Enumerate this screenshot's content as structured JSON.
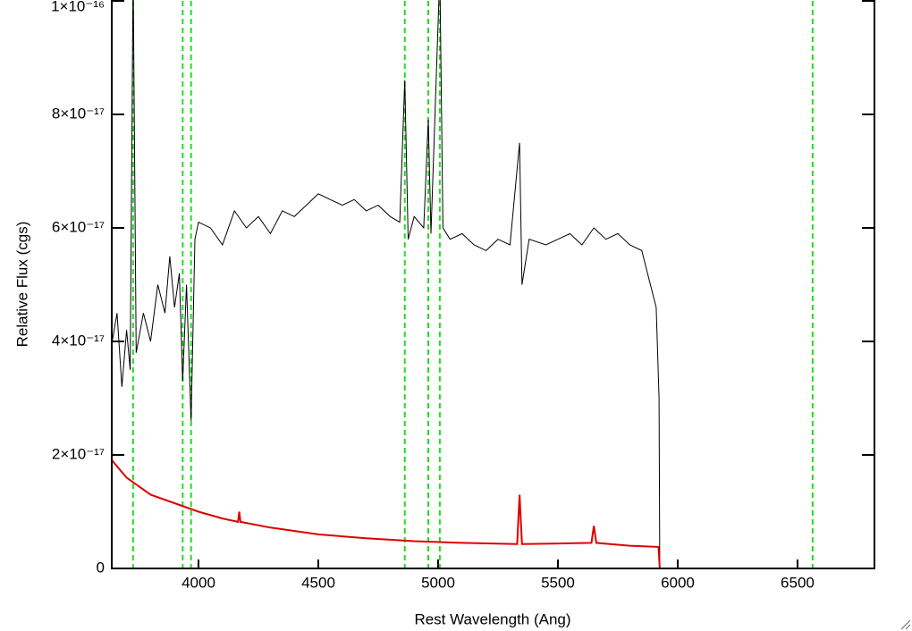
{
  "chart_data": {
    "type": "line",
    "xlabel": "Rest Wavelength (Ang)",
    "ylabel": "Relative Flux (cgs)",
    "xlim": [
      3638,
      6821
    ],
    "ylim": [
      0,
      1e-16
    ],
    "xticks": [
      4000,
      4500,
      5000,
      5500,
      6000,
      6500
    ],
    "yticks": [
      0,
      {
        "value": 2e-17,
        "label": "2×10⁻¹⁷"
      },
      {
        "value": 4e-17,
        "label": "4×10⁻¹⁷"
      },
      {
        "value": 6e-17,
        "label": "6×10⁻¹⁷"
      },
      {
        "value": 8e-17,
        "label": "8×10⁻¹⁷"
      },
      {
        "value": 1e-16,
        "label": "1×10⁻¹⁶"
      }
    ],
    "vlines": [
      3727,
      3934,
      3969,
      4861,
      4959,
      5007,
      6563
    ],
    "vline_color": "#22dd22",
    "series": [
      {
        "color": "#000000",
        "x": [
          3640,
          3660,
          3680,
          3700,
          3715,
          3727,
          3740,
          3770,
          3800,
          3830,
          3860,
          3880,
          3900,
          3920,
          3934,
          3950,
          3969,
          3985,
          4000,
          4050,
          4100,
          4150,
          4200,
          4250,
          4300,
          4350,
          4400,
          4450,
          4500,
          4550,
          4600,
          4650,
          4700,
          4750,
          4800,
          4840,
          4861,
          4875,
          4900,
          4940,
          4959,
          4970,
          5007,
          5020,
          5050,
          5100,
          5150,
          5200,
          5250,
          5300,
          5340,
          5350,
          5380,
          5450,
          5500,
          5550,
          5600,
          5650,
          5700,
          5750,
          5800,
          5850,
          5880,
          5910,
          5922,
          5925,
          6820
        ],
        "values": [
          4e-17,
          4.5e-17,
          3.2e-17,
          4.2e-17,
          3.5e-17,
          1.05e-16,
          3.8e-17,
          4.5e-17,
          4e-17,
          5e-17,
          4.5e-17,
          5.5e-17,
          4.6e-17,
          5.2e-17,
          3.3e-17,
          5e-17,
          2.6e-17,
          5.8e-17,
          6.1e-17,
          6e-17,
          5.7e-17,
          6.3e-17,
          6e-17,
          6.2e-17,
          5.9e-17,
          6.3e-17,
          6.2e-17,
          6.4e-17,
          6.6e-17,
          6.5e-17,
          6.4e-17,
          6.5e-17,
          6.3e-17,
          6.4e-17,
          6.2e-17,
          6.1e-17,
          8.6e-17,
          5.8e-17,
          6.2e-17,
          6e-17,
          7.9e-17,
          5.9e-17,
          1.05e-16,
          6e-17,
          5.8e-17,
          5.9e-17,
          5.7e-17,
          5.6e-17,
          5.8e-17,
          5.7e-17,
          7.5e-17,
          5e-17,
          5.8e-17,
          5.7e-17,
          5.8e-17,
          5.9e-17,
          5.7e-17,
          6e-17,
          5.8e-17,
          5.9e-17,
          5.7e-17,
          5.6e-17,
          5.1e-17,
          4.6e-17,
          3e-17,
          0,
          0
        ]
      },
      {
        "color": "#dd0000",
        "x": [
          3640,
          3700,
          3800,
          3900,
          4000,
          4100,
          4165,
          4170,
          4175,
          4300,
          4500,
          4700,
          4900,
          5100,
          5330,
          5340,
          5350,
          5500,
          5640,
          5650,
          5660,
          5800,
          5920,
          5925,
          6820
        ],
        "values": [
          1.9e-17,
          1.6e-17,
          1.3e-17,
          1.15e-17,
          1e-17,
          8.8e-18,
          8.2e-18,
          1e-17,
          8.2e-18,
          7.2e-18,
          6e-18,
          5.3e-18,
          4.8e-18,
          4.5e-18,
          4.3e-18,
          1.3e-17,
          4.3e-18,
          4.4e-18,
          4.5e-18,
          7.5e-18,
          4.5e-18,
          4e-18,
          3.8e-18,
          0,
          0
        ]
      }
    ]
  }
}
